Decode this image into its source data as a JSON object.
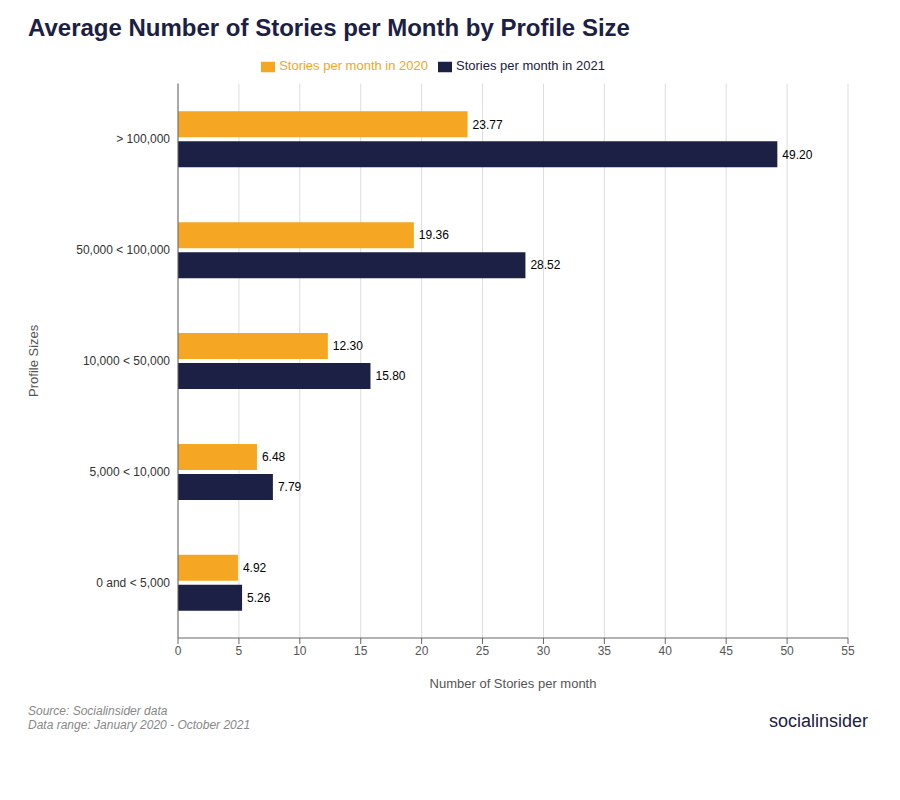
{
  "chart_data": {
    "type": "bar",
    "title": "Average Number of Stories per Month by Profile Size",
    "orientation": "horizontal",
    "categories": [
      "> 100,000",
      "50,000 < 100,000",
      "10,000 < 50,000",
      "5,000 < 10,000",
      "0 and < 5,000"
    ],
    "series": [
      {
        "name": "Stories per month in 2020",
        "color": "#F5A623",
        "values": [
          23.77,
          19.36,
          12.3,
          6.48,
          4.92
        ],
        "value_labels": [
          "23.77",
          "19.36",
          "12.30",
          "6.48",
          "4.92"
        ]
      },
      {
        "name": "Stories per month in 2021",
        "color": "#1B2044",
        "values": [
          49.2,
          28.52,
          15.8,
          7.79,
          5.26
        ],
        "value_labels": [
          "49.20",
          "28.52",
          "15.80",
          "7.79",
          "5.26"
        ]
      }
    ],
    "xlabel": "Number of Stories per month",
    "ylabel": "Profile Sizes",
    "xlim": [
      0,
      55
    ],
    "xticks": [
      0,
      5,
      10,
      15,
      20,
      25,
      30,
      35,
      40,
      45,
      50,
      55
    ],
    "grid": true,
    "legend": "top",
    "data_labels": true,
    "annotations": [
      "Source: Socialinsider data\nData range: January 2020 - October 2021",
      "socialinsider"
    ]
  }
}
